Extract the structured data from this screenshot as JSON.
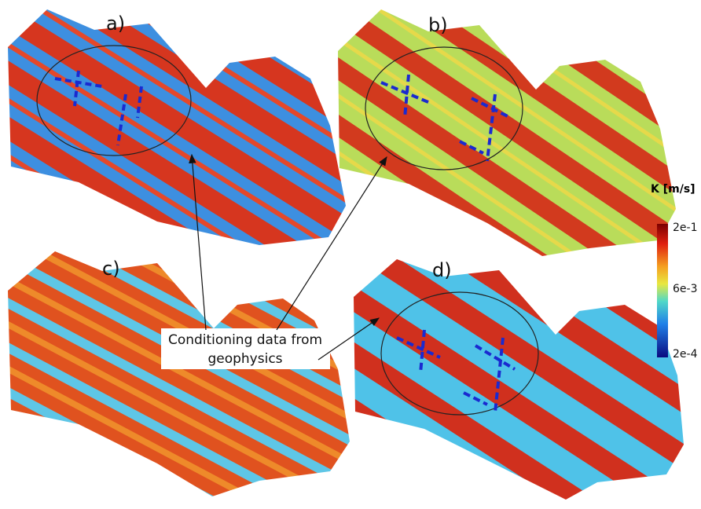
{
  "panels": [
    {
      "label": "a)"
    },
    {
      "label": "b)"
    },
    {
      "label": "c)"
    },
    {
      "label": "d)"
    }
  ],
  "annotation": {
    "lines": [
      "Conditioning data from",
      "geophysics"
    ]
  },
  "colorbar": {
    "title": "K [m/s]",
    "labels": [
      "2e-1",
      "6e-3",
      "2e-4"
    ]
  }
}
